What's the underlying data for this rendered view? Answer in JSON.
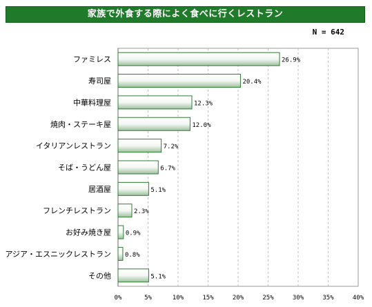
{
  "title": "家族で外食する際によく食べに行くレストラン",
  "sample": "N = 642",
  "colors": {
    "title_bg": "#1f7a2a",
    "bar_edge": "#2e7d32",
    "bar_fill": "#e8f2e8",
    "grid": "#c0c0c0"
  },
  "chart_data": {
    "type": "bar",
    "orientation": "horizontal",
    "categories": [
      "ファミレス",
      "寿司屋",
      "中華料理屋",
      "焼肉・ステーキ屋",
      "イタリアンレストラン",
      "そば・うどん屋",
      "居酒屋",
      "フレンチレストラン",
      "お好み焼き屋",
      "アジア・エスニックレストラン",
      "その他"
    ],
    "values": [
      26.9,
      20.4,
      12.3,
      12.0,
      7.2,
      6.7,
      5.1,
      2.3,
      0.9,
      0.8,
      5.1
    ],
    "value_labels": [
      "26.9%",
      "20.4%",
      "12.3%",
      "12.0%",
      "7.2%",
      "6.7%",
      "5.1%",
      "2.3%",
      "0.9%",
      "0.8%",
      "5.1%"
    ],
    "xlim": [
      0,
      40
    ],
    "ticks": [
      "0%",
      "5%",
      "10%",
      "15%",
      "20%",
      "25%",
      "30%",
      "35%",
      "40%"
    ],
    "grid": true
  }
}
